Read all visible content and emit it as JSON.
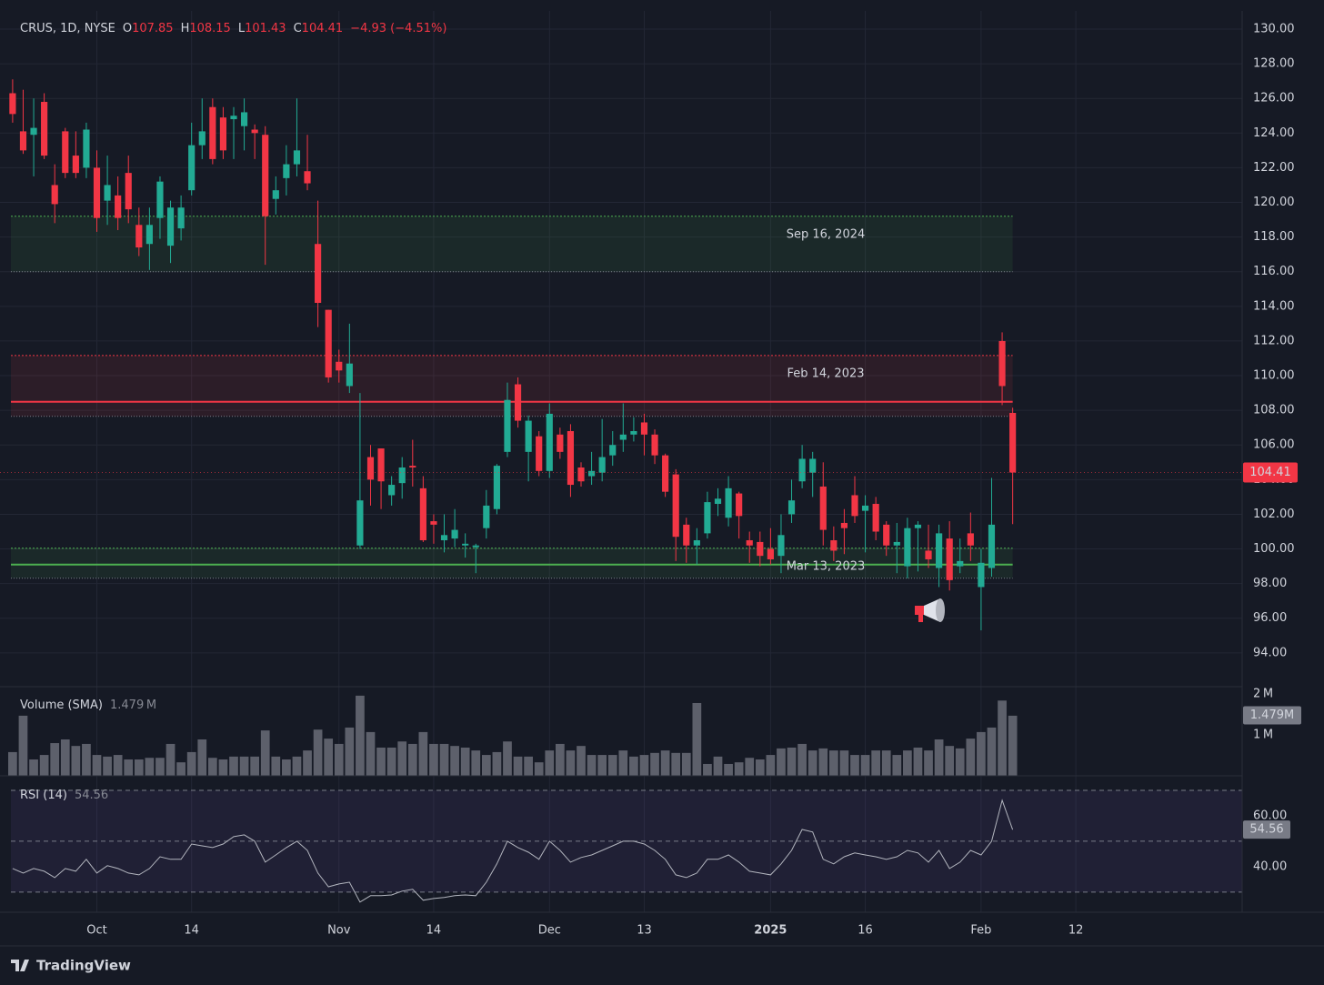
{
  "chart_data": {
    "type": "candlestick",
    "symbol": "CRUS, 1D, NYSE",
    "ohlc_letters": [
      "O",
      "H",
      "L",
      "C"
    ],
    "change": "−4.93 (−4.51%)",
    "up_color": "#22ab94",
    "down_color": "#f23645",
    "candles": {
      "open": [
        126.3,
        124.1,
        123.9,
        125.8,
        121.0,
        124.1,
        122.7,
        122.0,
        122.0,
        120.1,
        120.4,
        121.7,
        118.7,
        117.6,
        119.1,
        117.5,
        118.5,
        120.7,
        123.3,
        125.5,
        124.9,
        124.8,
        124.4,
        124.2,
        123.9,
        120.2,
        121.4,
        122.2,
        121.8,
        117.6,
        113.8,
        110.8,
        109.4,
        100.2,
        105.3,
        105.8,
        103.1,
        103.8,
        104.8,
        103.5,
        101.6,
        100.5,
        100.6,
        100.2,
        100.1,
        101.2,
        102.3,
        105.6,
        109.5,
        105.6,
        106.5,
        104.5,
        106.6,
        106.8,
        104.7,
        104.2,
        104.4,
        105.4,
        106.3,
        106.6,
        107.3,
        106.6,
        105.4,
        104.3,
        101.4,
        100.2,
        100.9,
        102.6,
        101.8,
        103.2,
        100.5,
        100.4,
        100.0,
        99.6,
        102.0,
        103.9,
        104.4,
        103.6,
        100.5,
        101.5,
        103.1,
        102.2,
        102.6,
        101.4,
        100.2,
        99.0,
        101.2,
        99.9,
        98.9,
        100.6,
        99.0,
        100.9,
        97.8,
        98.9,
        112.0,
        107.85
      ],
      "high": [
        127.1,
        126.5,
        126.0,
        126.3,
        122.2,
        124.3,
        124.1,
        124.6,
        123.0,
        122.7,
        121.5,
        122.7,
        119.7,
        119.7,
        121.5,
        120.1,
        120.4,
        124.6,
        126.0,
        126.0,
        125.5,
        125.5,
        126.0,
        124.5,
        124.4,
        121.5,
        123.3,
        126.0,
        123.9,
        120.1,
        113.8,
        111.5,
        113.0,
        109.0,
        106.0,
        105.8,
        104.2,
        105.3,
        106.3,
        104.2,
        102.0,
        102.0,
        102.3,
        100.9,
        100.3,
        103.4,
        104.9,
        109.6,
        109.9,
        107.7,
        106.8,
        108.4,
        107.0,
        107.2,
        105.0,
        105.6,
        107.5,
        106.8,
        108.4,
        107.6,
        107.8,
        106.9,
        105.5,
        104.6,
        101.8,
        101.2,
        103.3,
        103.5,
        104.2,
        103.3,
        101.0,
        101.0,
        101.2,
        102.0,
        104.0,
        106.0,
        105.6,
        105.0,
        101.3,
        102.3,
        104.2,
        103.1,
        103.0,
        101.6,
        101.5,
        101.8,
        101.6,
        101.4,
        101.4,
        101.6,
        100.6,
        102.1,
        100.0,
        104.1,
        112.5,
        108.15
      ],
      "low": [
        124.6,
        122.8,
        121.5,
        122.5,
        118.8,
        121.4,
        121.4,
        121.4,
        118.3,
        118.7,
        118.4,
        118.8,
        116.9,
        116.1,
        117.9,
        116.5,
        117.8,
        120.4,
        122.5,
        122.2,
        122.5,
        122.5,
        123.0,
        122.5,
        116.4,
        119.3,
        120.4,
        121.5,
        120.7,
        112.8,
        109.6,
        109.6,
        109.0,
        100.0,
        102.5,
        102.3,
        102.5,
        102.9,
        103.6,
        100.4,
        100.3,
        99.8,
        100.1,
        99.5,
        98.6,
        100.6,
        102.0,
        105.3,
        107.0,
        103.9,
        104.2,
        104.1,
        105.2,
        103.0,
        103.6,
        103.7,
        103.9,
        104.8,
        105.6,
        106.2,
        105.4,
        104.9,
        103.0,
        99.3,
        99.2,
        99.1,
        100.6,
        101.9,
        101.3,
        100.6,
        99.2,
        99.0,
        99.1,
        98.6,
        101.5,
        103.5,
        103.0,
        100.2,
        99.3,
        99.7,
        101.5,
        99.8,
        100.5,
        99.6,
        98.6,
        98.3,
        98.7,
        98.9,
        97.8,
        97.6,
        98.6,
        99.3,
        95.3,
        98.4,
        108.3,
        101.43
      ],
      "close": [
        125.1,
        123.0,
        124.3,
        122.7,
        119.9,
        121.7,
        121.7,
        124.2,
        119.1,
        121.0,
        119.1,
        119.6,
        117.4,
        118.7,
        121.2,
        119.7,
        119.7,
        123.3,
        124.1,
        122.5,
        123.0,
        125.0,
        125.2,
        124.0,
        119.2,
        120.7,
        122.2,
        123.0,
        121.1,
        114.2,
        109.9,
        110.3,
        110.7,
        102.8,
        104.0,
        103.9,
        103.7,
        104.7,
        104.7,
        100.5,
        101.4,
        100.8,
        101.1,
        100.3,
        100.2,
        102.5,
        104.8,
        108.6,
        107.4,
        107.4,
        104.5,
        107.8,
        105.6,
        103.7,
        103.9,
        104.5,
        105.3,
        106.0,
        106.6,
        106.8,
        106.6,
        105.4,
        103.3,
        100.7,
        100.2,
        100.5,
        102.7,
        102.9,
        103.5,
        101.9,
        100.2,
        99.6,
        99.4,
        100.8,
        102.8,
        105.2,
        105.2,
        101.1,
        99.9,
        101.2,
        101.9,
        102.5,
        101.0,
        100.2,
        100.4,
        101.2,
        101.4,
        99.4,
        100.9,
        98.2,
        99.3,
        100.2,
        99.2,
        101.4,
        109.4,
        104.41
      ]
    },
    "ylim": [
      92.05,
      131.05
    ],
    "yticks": [
      {
        "value": 94,
        "label": "94.00"
      },
      {
        "value": 96,
        "label": "96.00"
      },
      {
        "value": 98,
        "label": "98.00"
      },
      {
        "value": 100,
        "label": "100.00"
      },
      {
        "value": 102,
        "label": "102.00"
      },
      {
        "value": 104,
        "label": "104.00"
      },
      {
        "value": 106,
        "label": "106.00"
      },
      {
        "value": 108,
        "label": "108.00"
      },
      {
        "value": 110,
        "label": "110.00"
      },
      {
        "value": 112,
        "label": "112.00"
      },
      {
        "value": 114,
        "label": "114.00"
      },
      {
        "value": 116,
        "label": "116.00"
      },
      {
        "value": 118,
        "label": "118.00"
      },
      {
        "value": 120,
        "label": "120.00"
      },
      {
        "value": 122,
        "label": "122.00"
      },
      {
        "value": 124,
        "label": "124.00"
      },
      {
        "value": 126,
        "label": "126.00"
      },
      {
        "value": 128,
        "label": "128.00"
      },
      {
        "value": 130,
        "label": "130.00"
      }
    ],
    "xlim": [
      -1.2,
      116.8
    ],
    "xticks": [
      {
        "value": 8,
        "label": "Oct"
      },
      {
        "value": 17,
        "label": "14"
      },
      {
        "value": 31,
        "label": "Nov"
      },
      {
        "value": 40,
        "label": "14"
      },
      {
        "value": 51,
        "label": "Dec"
      },
      {
        "value": 60,
        "label": "13"
      },
      {
        "value": 72,
        "label": "2025"
      },
      {
        "value": 81,
        "label": "16"
      },
      {
        "value": 92,
        "label": "Feb"
      },
      {
        "value": 101,
        "label": "12"
      }
    ],
    "grid": true,
    "zones": [
      {
        "label": "Sep 16, 2024",
        "top": 119.2,
        "bottom": 116.0,
        "color": "#4caf50"
      },
      {
        "label": "Feb 14, 2023",
        "top": 111.16,
        "bottom": 107.65,
        "line": 108.49,
        "color": "#f23645"
      },
      {
        "label": "Mar 13, 2023",
        "top": 100.04,
        "bottom": 98.31,
        "line": 99.1,
        "color": "#4caf50"
      }
    ],
    "volume": {
      "title": "Volume (SMA)",
      "sma": {
        "value": 1.479,
        "label": "1.479 M",
        "tag_label": "1.479M"
      },
      "color": "#5d606b",
      "values": [
        0.58,
        1.47,
        0.4,
        0.51,
        0.8,
        0.89,
        0.73,
        0.78,
        0.51,
        0.47,
        0.51,
        0.4,
        0.4,
        0.44,
        0.44,
        0.78,
        0.33,
        0.58,
        0.89,
        0.44,
        0.4,
        0.47,
        0.47,
        0.47,
        1.11,
        0.47,
        0.4,
        0.47,
        0.62,
        1.13,
        0.91,
        0.78,
        1.18,
        1.96,
        1.07,
        0.69,
        0.69,
        0.84,
        0.78,
        1.07,
        0.78,
        0.78,
        0.73,
        0.69,
        0.62,
        0.51,
        0.58,
        0.84,
        0.47,
        0.47,
        0.33,
        0.62,
        0.78,
        0.62,
        0.73,
        0.51,
        0.51,
        0.51,
        0.62,
        0.47,
        0.51,
        0.56,
        0.62,
        0.56,
        0.56,
        1.78,
        0.29,
        0.47,
        0.29,
        0.33,
        0.44,
        0.4,
        0.51,
        0.67,
        0.69,
        0.78,
        0.62,
        0.67,
        0.62,
        0.62,
        0.51,
        0.51,
        0.62,
        0.62,
        0.51,
        0.62,
        0.69,
        0.62,
        0.89,
        0.73,
        0.67,
        0.91,
        1.07,
        1.18,
        1.84,
        1.47
      ],
      "ylim": [
        0,
        2.18
      ],
      "yticks": [
        {
          "value": 1,
          "label": "1 M"
        },
        {
          "value": 2,
          "label": "2 M"
        }
      ]
    },
    "rsi": {
      "title": "RSI (14)",
      "color": "#b2b5be",
      "band_color": "#7e57c2",
      "levels": [
        70,
        50,
        30
      ],
      "values": [
        39.3,
        37.5,
        39.3,
        38.2,
        35.7,
        39.3,
        38.2,
        42.9,
        37.5,
        40.4,
        39.3,
        37.5,
        36.8,
        39.3,
        43.9,
        42.9,
        42.9,
        48.9,
        48.2,
        47.5,
        48.9,
        51.8,
        52.5,
        50,
        41.8,
        44.6,
        47.5,
        50,
        46.4,
        37.5,
        32.1,
        33.2,
        33.9,
        26.1,
        28.6,
        28.6,
        28.9,
        30.4,
        31.1,
        26.8,
        27.5,
        27.9,
        28.6,
        28.9,
        28.6,
        33.9,
        41.1,
        50,
        47.5,
        45.7,
        42.9,
        50,
        46.4,
        41.8,
        43.6,
        44.6,
        46.4,
        48.2,
        50,
        50,
        48.9,
        46.4,
        42.9,
        36.8,
        35.7,
        37.5,
        42.9,
        42.9,
        44.6,
        41.8,
        38.2,
        37.5,
        36.8,
        41.1,
        46.4,
        54.6,
        53.6,
        42.9,
        41.1,
        43.9,
        45.4,
        44.6,
        43.9,
        42.9,
        43.9,
        46.4,
        45.4,
        41.8,
        46.4,
        39.3,
        41.8,
        46.4,
        44.6,
        50,
        66.1,
        54.56
      ],
      "ylim": [
        22.1,
        75.7
      ],
      "yticks": [
        {
          "value": 40,
          "label": "40.00"
        },
        {
          "value": 60,
          "label": "60.00"
        }
      ]
    },
    "brand": "TradingView"
  }
}
